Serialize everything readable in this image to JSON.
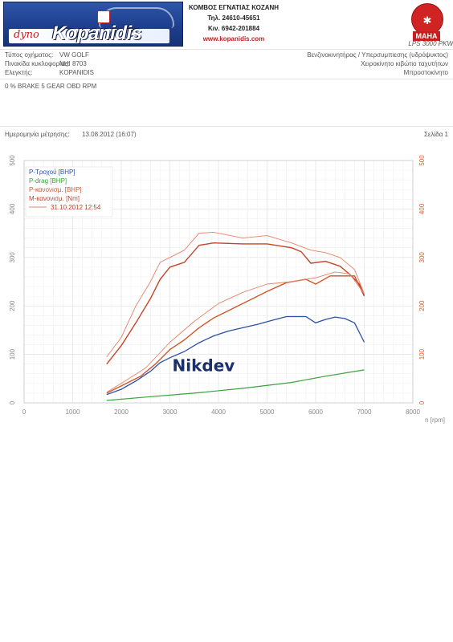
{
  "header": {
    "logo_prefix": "dyno",
    "logo_name": "Kopanidis",
    "contact_lines": [
      "ΚΟΜΒΟΣ ΕΓΝΑΤΙΑΣ ΚΟΖΑΝΗ",
      "Τηλ. 24610-45651",
      "Κιν. 6942-201884",
      "www.kopanidis.com"
    ],
    "maha_label": "MAHA",
    "maha_model": "LPS 3000 PKW"
  },
  "info": {
    "vehicle_type_label": "Τύπος οχήματος:",
    "vehicle_type_value": "VW GOLF",
    "plate_label": "Πινακίδα κυκλοφορίας:",
    "plate_value": "NHI 8703",
    "inspector_label": "Ελεγκτής:",
    "inspector_value": "KOPANIDIS",
    "engine": "Βενζινοκινητήρας / Υπερσυμπιεσης (υδρόψυκτος)",
    "gearbox": "Χειροκίνητο κιβώτιο ταχυτήτων",
    "drive": "Μπροστοκίνητο",
    "test_params": "0 % BRAKE  5 GEAR OBD RPM",
    "date_label": "Ημερομηνία μέτρησης:",
    "date_value": "13.08.2012 (16:07)",
    "page_label": "Σελίδα 1"
  },
  "watermark": "Nikdev",
  "chart_data": {
    "type": "line",
    "xlabel": "n [rpm]",
    "xlim": [
      0,
      8000
    ],
    "ylim": [
      0,
      500
    ],
    "x_ticks": [
      0,
      1000,
      2000,
      3000,
      4000,
      5000,
      6000,
      7000,
      8000
    ],
    "y_ticks": [
      0,
      100,
      200,
      300,
      400,
      500
    ],
    "grid": true,
    "legend_position": "top-left",
    "colors": {
      "wheel": "#2b4fa6",
      "drag": "#38a33a",
      "power": "#d2562d",
      "torque": "#c5442a",
      "comparison": "#e8826a",
      "axis_right": "#d2622d"
    },
    "legend": [
      {
        "label": "P-Τροχού [BHP]",
        "color": "#2b4fa6"
      },
      {
        "label": "P-drag [BHP]",
        "color": "#38a33a"
      },
      {
        "label": "P-κανονισμ. [BHP]",
        "color": "#d2562d"
      },
      {
        "label": "M-κανονισμ. [Nm]",
        "color": "#c5442a"
      },
      {
        "label": "31.10.2012 12:54",
        "color": "#e8826a",
        "is_comparison": true
      }
    ],
    "series": [
      {
        "name": "P-Τροχού [BHP]",
        "key": "wheel",
        "x": [
          1700,
          2000,
          2300,
          2600,
          2800,
          3000,
          3300,
          3600,
          3900,
          4200,
          4500,
          4800,
          5100,
          5400,
          5800,
          6000,
          6200,
          6400,
          6600,
          6800,
          7000
        ],
        "y": [
          17,
          28,
          45,
          65,
          83,
          93,
          106,
          124,
          138,
          148,
          155,
          162,
          170,
          178,
          178,
          165,
          172,
          177,
          174,
          165,
          125
        ]
      },
      {
        "name": "P-drag [BHP]",
        "key": "drag",
        "x": [
          1700,
          2500,
          3500,
          4500,
          5500,
          6200,
          7000
        ],
        "y": [
          5,
          12,
          20,
          30,
          42,
          55,
          68
        ]
      },
      {
        "name": "P-κανονισμ. [BHP]",
        "key": "power",
        "x": [
          1700,
          2000,
          2400,
          2700,
          3000,
          3300,
          3600,
          3900,
          4200,
          4600,
          5000,
          5400,
          5800,
          6000,
          6300,
          6600,
          6800,
          7000
        ],
        "y": [
          20,
          35,
          55,
          80,
          110,
          130,
          155,
          175,
          190,
          210,
          230,
          248,
          255,
          245,
          262,
          262,
          262,
          220
        ]
      },
      {
        "name": "M-κανονισμ. [Nm]",
        "key": "torque",
        "x": [
          1700,
          2000,
          2300,
          2600,
          2800,
          3000,
          3300,
          3600,
          3900,
          4500,
          5000,
          5500,
          5700,
          5900,
          6200,
          6500,
          6700,
          6900,
          7000
        ],
        "y": [
          80,
          118,
          165,
          215,
          255,
          280,
          290,
          325,
          330,
          328,
          328,
          320,
          312,
          288,
          292,
          282,
          265,
          245,
          222
        ]
      },
      {
        "name": "31.10.2012 12:54 (P)",
        "key": "comparison",
        "x": [
          1700,
          2000,
          2500,
          3000,
          3500,
          4000,
          4500,
          5000,
          5500,
          6000,
          6400,
          6700,
          7000
        ],
        "y": [
          22,
          40,
          72,
          125,
          168,
          205,
          228,
          245,
          250,
          258,
          270,
          266,
          225
        ]
      },
      {
        "name": "31.10.2012 12:54 (M)",
        "key": "comparison",
        "x": [
          1700,
          2000,
          2300,
          2600,
          2800,
          3000,
          3300,
          3600,
          3900,
          4500,
          5000,
          5500,
          5900,
          6200,
          6500,
          6800,
          7000
        ],
        "y": [
          95,
          135,
          200,
          250,
          290,
          300,
          315,
          350,
          352,
          340,
          345,
          330,
          315,
          310,
          300,
          275,
          225
        ]
      }
    ]
  }
}
